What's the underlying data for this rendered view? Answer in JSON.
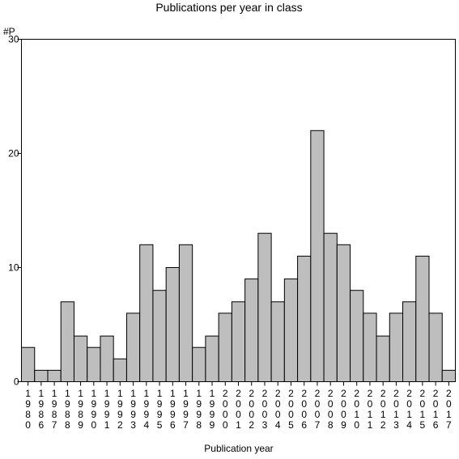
{
  "chart_data": {
    "type": "bar",
    "title": "Publications per year in class",
    "xlabel": "Publication year",
    "ylabel": "#P",
    "ylim": [
      0,
      30
    ],
    "yticks": [
      0,
      10,
      20,
      30
    ],
    "categories": [
      "1980",
      "1986",
      "1987",
      "1988",
      "1989",
      "1990",
      "1991",
      "1992",
      "1993",
      "1994",
      "1995",
      "1996",
      "1997",
      "1998",
      "1999",
      "2000",
      "2001",
      "2002",
      "2003",
      "2004",
      "2005",
      "2006",
      "2007",
      "2008",
      "2009",
      "2010",
      "2011",
      "2012",
      "2013",
      "2014",
      "2015",
      "2016",
      "2017"
    ],
    "values": [
      3,
      1,
      1,
      7,
      4,
      3,
      4,
      2,
      6,
      12,
      8,
      10,
      12,
      3,
      4,
      6,
      7,
      9,
      13,
      7,
      9,
      11,
      22,
      13,
      12,
      8,
      6,
      4,
      6,
      7,
      11,
      6,
      1
    ],
    "bar_color": "#bebebe",
    "grid": false,
    "legend": "none"
  }
}
